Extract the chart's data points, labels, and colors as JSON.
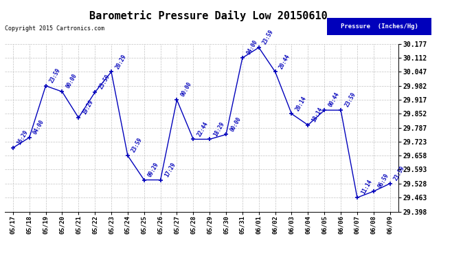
{
  "title": "Barometric Pressure Daily Low 20150610",
  "copyright": "Copyright 2015 Cartronics.com",
  "legend_label": "Pressure  (Inches/Hg)",
  "ylim": [
    29.398,
    30.177
  ],
  "yticks": [
    29.398,
    29.463,
    29.528,
    29.593,
    29.658,
    29.723,
    29.787,
    29.852,
    29.917,
    29.982,
    30.047,
    30.112,
    30.177
  ],
  "dates": [
    "05/17",
    "05/18",
    "05/19",
    "05/20",
    "05/21",
    "05/22",
    "05/23",
    "05/24",
    "05/25",
    "05/26",
    "05/27",
    "05/28",
    "05/29",
    "05/30",
    "05/31",
    "06/01",
    "06/02",
    "06/03",
    "06/04",
    "06/05",
    "06/06",
    "06/07",
    "06/08",
    "06/09"
  ],
  "values": [
    29.694,
    29.742,
    29.982,
    29.955,
    29.834,
    29.952,
    30.047,
    29.658,
    29.545,
    29.545,
    29.917,
    29.734,
    29.734,
    29.756,
    30.112,
    30.16,
    30.047,
    29.852,
    29.8,
    29.869,
    29.869,
    29.463,
    29.492,
    29.528
  ],
  "labels": [
    "16:29",
    "04:00",
    "23:59",
    "00:00",
    "19:29",
    "23:59",
    "20:29",
    "23:59",
    "09:29",
    "17:29",
    "00:00",
    "22:44",
    "18:29",
    "00:00",
    "04:00",
    "23:59",
    "20:44",
    "20:14",
    "18:14",
    "00:44",
    "23:59",
    "11:14",
    "06:59",
    "23:59"
  ],
  "line_color": "#0000bb",
  "bg_color": "#ffffff",
  "grid_color": "#bbbbbb",
  "title_fontsize": 11,
  "legend_bg": "#0000bb",
  "legend_fg": "#ffffff"
}
